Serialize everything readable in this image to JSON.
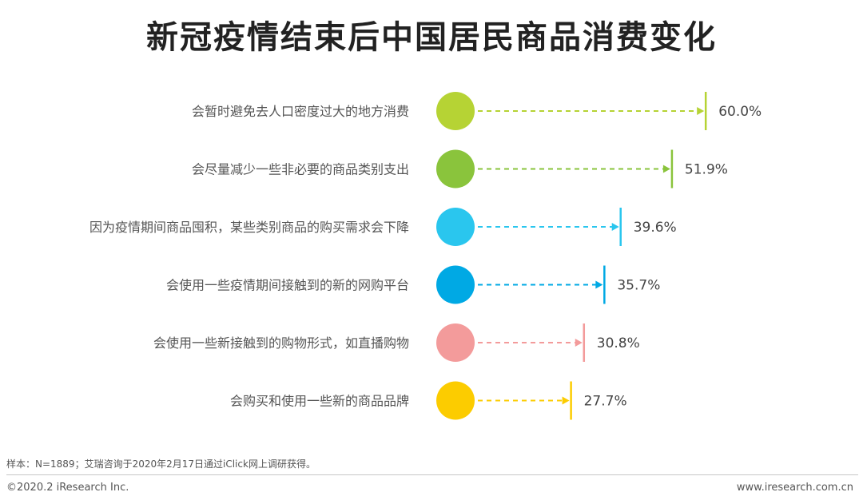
{
  "title": "新冠疫情结束后中国居民商品消费变化",
  "chart_data": {
    "type": "bar",
    "categories": [
      "会暂时避免去人口密度过大的地方消费",
      "会尽量减少一些非必要的商品类别支出",
      "因为疫情期间商品囤积，某些类别商品的购买需求会下降",
      "会使用一些疫情期间接触到的新的网购平台",
      "会使用一些新接触到的购物形式，如直播购物",
      "会购买和使用一些新的商品品牌"
    ],
    "values": [
      60.0,
      51.9,
      39.6,
      35.7,
      30.8,
      27.7
    ],
    "value_labels": [
      "60.0%",
      "51.9%",
      "39.6%",
      "35.7%",
      "30.8%",
      "27.7%"
    ],
    "colors": [
      "#b6d334",
      "#8ac43c",
      "#2ac6ee",
      "#00a9e4",
      "#f39b9b",
      "#fccc00"
    ],
    "unit": "%"
  },
  "footer": {
    "note": "样本：N=1889；艾瑞咨询于2020年2月17日通过iClick网上调研获得。",
    "copyright": "©2020.2 iResearch Inc.",
    "url": "www.iresearch.com.cn"
  }
}
